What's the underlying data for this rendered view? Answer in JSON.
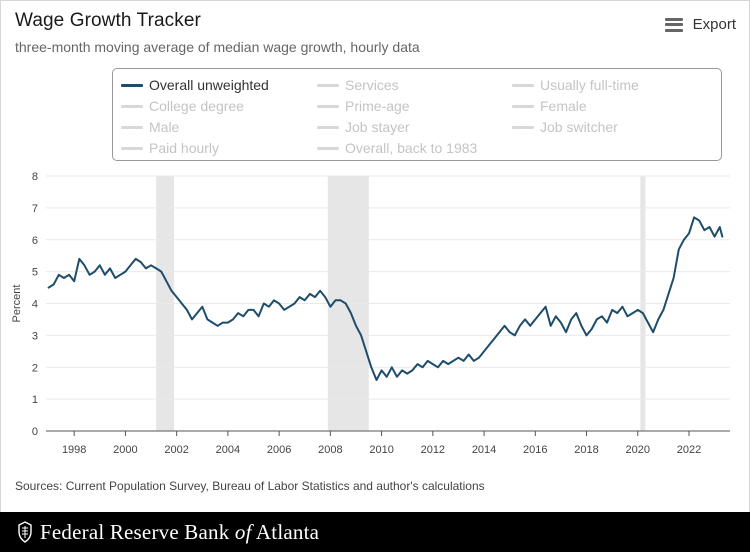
{
  "header": {
    "title": "Wage Growth Tracker",
    "subtitle": "three-month moving average of median wage growth, hourly data",
    "export_label": "Export"
  },
  "legend": {
    "items": [
      {
        "label": "Overall unweighted",
        "active": true
      },
      {
        "label": "Services",
        "active": false
      },
      {
        "label": "Usually full-time",
        "active": false
      },
      {
        "label": "College degree",
        "active": false
      },
      {
        "label": "Prime-age",
        "active": false
      },
      {
        "label": "Female",
        "active": false
      },
      {
        "label": "Male",
        "active": false
      },
      {
        "label": "Job stayer",
        "active": false
      },
      {
        "label": "Job switcher",
        "active": false
      },
      {
        "label": "Paid hourly",
        "active": false
      },
      {
        "label": "Overall, back to 1983",
        "active": false
      }
    ]
  },
  "chart_data": {
    "type": "line",
    "title": "Wage Growth Tracker",
    "subtitle": "three-month moving average of median wage growth, hourly data",
    "xlabel": "",
    "ylabel": "Percent",
    "xlim": [
      1996.9,
      2023.6
    ],
    "ylim": [
      0,
      8
    ],
    "xticks": [
      1998,
      2000,
      2002,
      2004,
      2006,
      2008,
      2010,
      2012,
      2014,
      2016,
      2018,
      2020,
      2022
    ],
    "yticks": [
      0,
      1,
      2,
      3,
      4,
      5,
      6,
      7,
      8
    ],
    "grid": true,
    "legend_position": "top",
    "recessions": [
      {
        "start": 2001.2,
        "end": 2001.9
      },
      {
        "start": 2007.9,
        "end": 2009.5
      },
      {
        "start": 2020.1,
        "end": 2020.3
      }
    ],
    "series": [
      {
        "name": "Overall unweighted",
        "color": "#1e4d6b",
        "x": [
          1997.0,
          1997.2,
          1997.4,
          1997.6,
          1997.8,
          1998.0,
          1998.2,
          1998.4,
          1998.6,
          1998.8,
          1999.0,
          1999.2,
          1999.4,
          1999.6,
          1999.8,
          2000.0,
          2000.2,
          2000.4,
          2000.6,
          2000.8,
          2001.0,
          2001.2,
          2001.4,
          2001.6,
          2001.8,
          2002.0,
          2002.2,
          2002.4,
          2002.6,
          2002.8,
          2003.0,
          2003.2,
          2003.4,
          2003.6,
          2003.8,
          2004.0,
          2004.2,
          2004.4,
          2004.6,
          2004.8,
          2005.0,
          2005.2,
          2005.4,
          2005.6,
          2005.8,
          2006.0,
          2006.2,
          2006.4,
          2006.6,
          2006.8,
          2007.0,
          2007.2,
          2007.4,
          2007.6,
          2007.8,
          2008.0,
          2008.2,
          2008.4,
          2008.6,
          2008.8,
          2009.0,
          2009.2,
          2009.4,
          2009.6,
          2009.8,
          2010.0,
          2010.2,
          2010.4,
          2010.6,
          2010.8,
          2011.0,
          2011.2,
          2011.4,
          2011.6,
          2011.8,
          2012.0,
          2012.2,
          2012.4,
          2012.6,
          2012.8,
          2013.0,
          2013.2,
          2013.4,
          2013.6,
          2013.8,
          2014.0,
          2014.2,
          2014.4,
          2014.6,
          2014.8,
          2015.0,
          2015.2,
          2015.4,
          2015.6,
          2015.8,
          2016.0,
          2016.2,
          2016.4,
          2016.6,
          2016.8,
          2017.0,
          2017.2,
          2017.4,
          2017.6,
          2017.8,
          2018.0,
          2018.2,
          2018.4,
          2018.6,
          2018.8,
          2019.0,
          2019.2,
          2019.4,
          2019.6,
          2019.8,
          2020.0,
          2020.2,
          2020.4,
          2020.6,
          2020.8,
          2021.0,
          2021.2,
          2021.4,
          2021.6,
          2021.8,
          2022.0,
          2022.2,
          2022.4,
          2022.6,
          2022.8,
          2023.0,
          2023.2,
          2023.3
        ],
        "y": [
          4.5,
          4.6,
          4.9,
          4.8,
          4.9,
          4.7,
          5.4,
          5.2,
          4.9,
          5.0,
          5.2,
          4.9,
          5.1,
          4.8,
          4.9,
          5.0,
          5.2,
          5.4,
          5.3,
          5.1,
          5.2,
          5.1,
          5.0,
          4.7,
          4.4,
          4.2,
          4.0,
          3.8,
          3.5,
          3.7,
          3.9,
          3.5,
          3.4,
          3.3,
          3.4,
          3.4,
          3.5,
          3.7,
          3.6,
          3.8,
          3.8,
          3.6,
          4.0,
          3.9,
          4.1,
          4.0,
          3.8,
          3.9,
          4.0,
          4.2,
          4.1,
          4.3,
          4.2,
          4.4,
          4.2,
          3.9,
          4.1,
          4.1,
          4.0,
          3.7,
          3.3,
          3.0,
          2.5,
          2.0,
          1.6,
          1.9,
          1.7,
          2.0,
          1.7,
          1.9,
          1.8,
          1.9,
          2.1,
          2.0,
          2.2,
          2.1,
          2.0,
          2.2,
          2.1,
          2.2,
          2.3,
          2.2,
          2.4,
          2.2,
          2.3,
          2.5,
          2.7,
          2.9,
          3.1,
          3.3,
          3.1,
          3.0,
          3.3,
          3.5,
          3.3,
          3.5,
          3.7,
          3.9,
          3.3,
          3.6,
          3.4,
          3.1,
          3.5,
          3.7,
          3.3,
          3.0,
          3.2,
          3.5,
          3.6,
          3.4,
          3.8,
          3.7,
          3.9,
          3.6,
          3.7,
          3.8,
          3.7,
          3.4,
          3.1,
          3.5,
          3.8,
          4.3,
          4.8,
          5.7,
          6.0,
          6.2,
          6.7,
          6.6,
          6.3,
          6.4,
          6.1,
          6.4,
          6.1
        ]
      }
    ]
  },
  "sources": "Sources: Current Population Survey, Bureau of Labor Statistics and author's calculations",
  "footer": {
    "bank_name_prefix": "Federal Reserve Bank ",
    "bank_name_of": "of",
    "bank_name_suffix": " Atlanta"
  },
  "colors": {
    "series": "#1e4d6b",
    "recession": "#e6e6e6",
    "grid": "#e9e9e9",
    "footer_bg": "#000000"
  }
}
